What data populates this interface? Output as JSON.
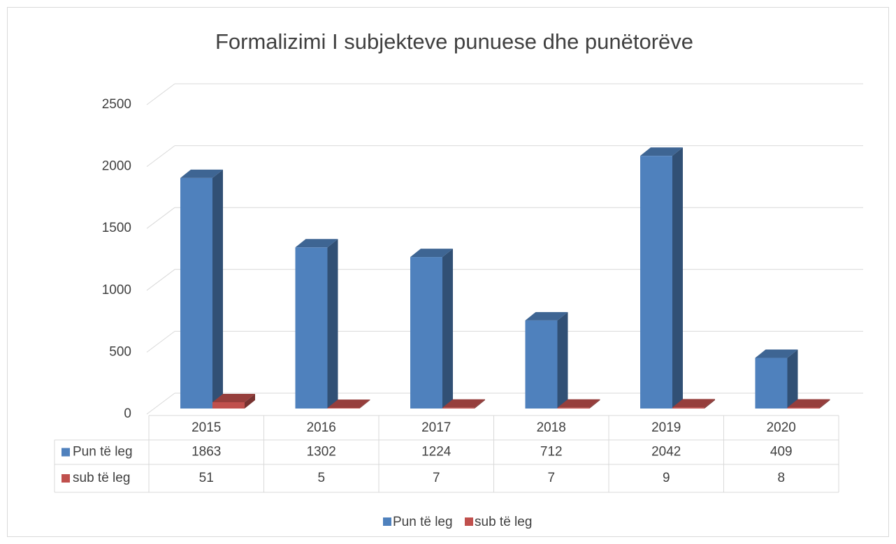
{
  "chart_data": {
    "type": "bar3d",
    "title": "Formalizimi I subjekteve punuese dhe punëtorëve",
    "categories": [
      "2015",
      "2016",
      "2017",
      "2018",
      "2019",
      "2020"
    ],
    "series": [
      {
        "name": "Pun të leg",
        "color": "#4f81bd",
        "values": [
          1863,
          1302,
          1224,
          712,
          2042,
          409
        ]
      },
      {
        "name": "sub të leg",
        "color": "#c0504d",
        "values": [
          51,
          5,
          7,
          7,
          9,
          8
        ]
      }
    ],
    "ylim": [
      0,
      2500
    ],
    "yticks": [
      0,
      500,
      1000,
      1500,
      2000,
      2500
    ],
    "grid": true,
    "legend": "bottom",
    "data_table": true
  }
}
